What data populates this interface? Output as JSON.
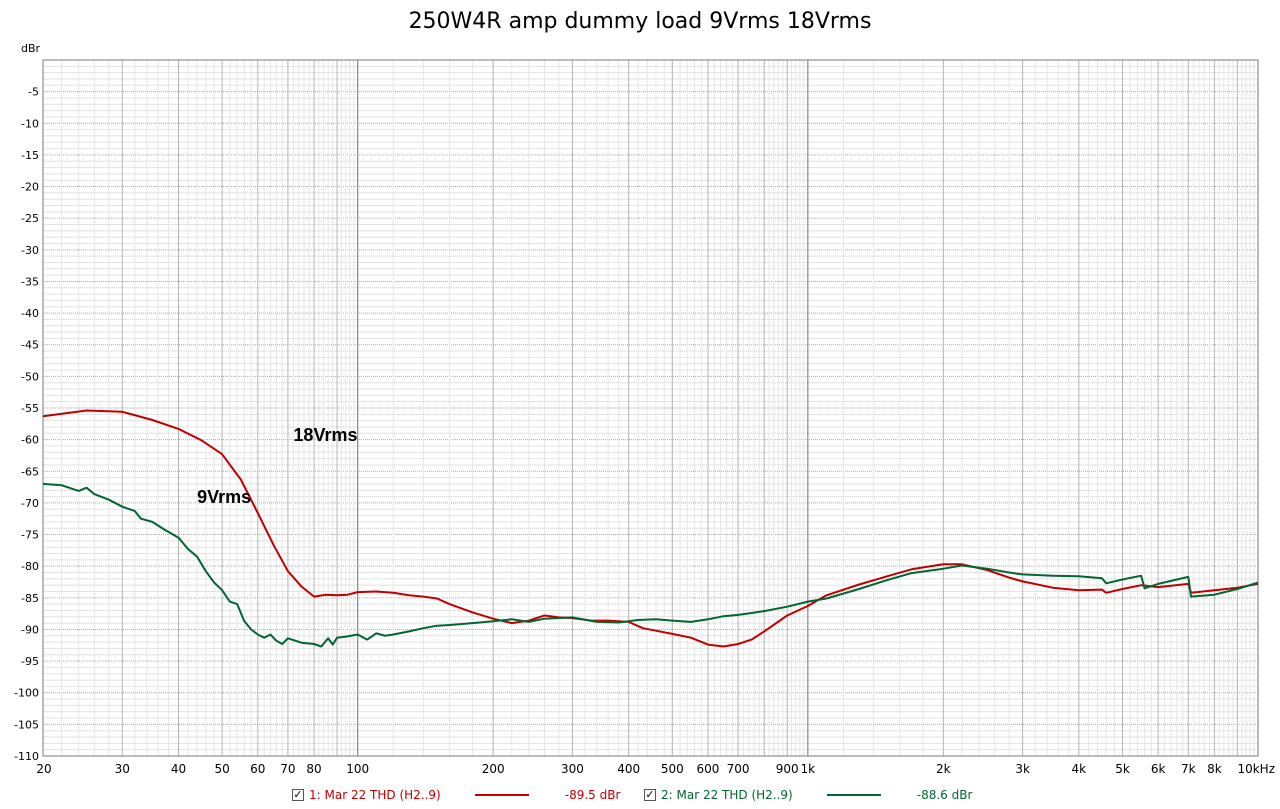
{
  "chart_data": {
    "type": "line",
    "title": "250W4R amp dummy load 9Vrms 18Vrms",
    "y_unit": "dBr",
    "x_scale": "log",
    "xlim": [
      20,
      10000
    ],
    "ylim": [
      -110,
      0
    ],
    "y_ticks": [
      "-5",
      "-10",
      "-15",
      "-20",
      "-25",
      "-30",
      "-35",
      "-40",
      "-45",
      "-50",
      "-55",
      "-60",
      "-65",
      "-70",
      "-75",
      "-80",
      "-85",
      "-90",
      "-95",
      "-100",
      "-105",
      "-110"
    ],
    "x_ticks": [
      {
        "v": 20,
        "label": "20"
      },
      {
        "v": 30,
        "label": "30"
      },
      {
        "v": 40,
        "label": "40"
      },
      {
        "v": 50,
        "label": "50"
      },
      {
        "v": 60,
        "label": "60"
      },
      {
        "v": 70,
        "label": "70"
      },
      {
        "v": 80,
        "label": "80"
      },
      {
        "v": 100,
        "label": "100"
      },
      {
        "v": 200,
        "label": "200"
      },
      {
        "v": 300,
        "label": "300"
      },
      {
        "v": 400,
        "label": "400"
      },
      {
        "v": 500,
        "label": "500"
      },
      {
        "v": 600,
        "label": "600"
      },
      {
        "v": 700,
        "label": "700"
      },
      {
        "v": 900,
        "label": "900"
      },
      {
        "v": 1000,
        "label": "1k"
      },
      {
        "v": 2000,
        "label": "2k"
      },
      {
        "v": 3000,
        "label": "3k"
      },
      {
        "v": 4000,
        "label": "4k"
      },
      {
        "v": 5000,
        "label": "5k"
      },
      {
        "v": 6000,
        "label": "6k"
      },
      {
        "v": 7000,
        "label": "7k"
      },
      {
        "v": 8000,
        "label": "8k"
      },
      {
        "v": 10000,
        "label": "10kHz"
      }
    ],
    "grid": true,
    "legend_position": "bottom",
    "series": [
      {
        "name": "1: Mar 22 THD (H2..9)",
        "readout": "-89.5 dBr",
        "color": "#c00000",
        "points": [
          [
            20,
            -56.3
          ],
          [
            25,
            -55.4
          ],
          [
            30,
            -55.6
          ],
          [
            35,
            -56.9
          ],
          [
            40,
            -58.3
          ],
          [
            45,
            -60.1
          ],
          [
            50,
            -62.3
          ],
          [
            55,
            -66.3
          ],
          [
            60,
            -71.6
          ],
          [
            65,
            -76.6
          ],
          [
            70,
            -80.8
          ],
          [
            75,
            -83.2
          ],
          [
            80,
            -84.8
          ],
          [
            85,
            -84.5
          ],
          [
            90,
            -84.6
          ],
          [
            95,
            -84.5
          ],
          [
            100,
            -84.1
          ],
          [
            110,
            -84.0
          ],
          [
            120,
            -84.2
          ],
          [
            130,
            -84.6
          ],
          [
            140,
            -84.8
          ],
          [
            150,
            -85.1
          ],
          [
            160,
            -86.0
          ],
          [
            180,
            -87.3
          ],
          [
            200,
            -88.3
          ],
          [
            220,
            -89.0
          ],
          [
            240,
            -88.6
          ],
          [
            260,
            -87.8
          ],
          [
            280,
            -88.1
          ],
          [
            300,
            -88.2
          ],
          [
            330,
            -88.6
          ],
          [
            360,
            -88.6
          ],
          [
            400,
            -88.8
          ],
          [
            430,
            -89.8
          ],
          [
            460,
            -90.2
          ],
          [
            500,
            -90.7
          ],
          [
            550,
            -91.3
          ],
          [
            600,
            -92.4
          ],
          [
            650,
            -92.7
          ],
          [
            700,
            -92.3
          ],
          [
            750,
            -91.6
          ],
          [
            800,
            -90.3
          ],
          [
            900,
            -87.8
          ],
          [
            1000,
            -86.3
          ],
          [
            1100,
            -84.6
          ],
          [
            1300,
            -82.9
          ],
          [
            1500,
            -81.6
          ],
          [
            1700,
            -80.5
          ],
          [
            2000,
            -79.7
          ],
          [
            2200,
            -79.7
          ],
          [
            2500,
            -80.6
          ],
          [
            2800,
            -81.8
          ],
          [
            3000,
            -82.4
          ],
          [
            3500,
            -83.4
          ],
          [
            4000,
            -83.8
          ],
          [
            4500,
            -83.7
          ],
          [
            4600,
            -84.2
          ],
          [
            5000,
            -83.6
          ],
          [
            5500,
            -83.0
          ],
          [
            6000,
            -83.3
          ],
          [
            7000,
            -82.8
          ],
          [
            7100,
            -84.2
          ],
          [
            8000,
            -83.8
          ],
          [
            9000,
            -83.4
          ],
          [
            10000,
            -82.8
          ]
        ]
      },
      {
        "name": "2: Mar 22 THD (H2..9)",
        "readout": "-88.6 dBr",
        "color": "#006633",
        "points": [
          [
            20,
            -67.0
          ],
          [
            22,
            -67.2
          ],
          [
            24,
            -68.1
          ],
          [
            25,
            -67.6
          ],
          [
            26,
            -68.6
          ],
          [
            28,
            -69.5
          ],
          [
            30,
            -70.6
          ],
          [
            32,
            -71.3
          ],
          [
            33,
            -72.5
          ],
          [
            35,
            -73.0
          ],
          [
            37,
            -74.1
          ],
          [
            40,
            -75.5
          ],
          [
            42,
            -77.3
          ],
          [
            44,
            -78.5
          ],
          [
            46,
            -80.8
          ],
          [
            48,
            -82.6
          ],
          [
            50,
            -83.8
          ],
          [
            52,
            -85.6
          ],
          [
            54,
            -86.0
          ],
          [
            56,
            -88.7
          ],
          [
            58,
            -90.0
          ],
          [
            60,
            -90.8
          ],
          [
            62,
            -91.3
          ],
          [
            64,
            -90.8
          ],
          [
            66,
            -91.8
          ],
          [
            68,
            -92.3
          ],
          [
            70,
            -91.4
          ],
          [
            75,
            -92.1
          ],
          [
            80,
            -92.3
          ],
          [
            83,
            -92.7
          ],
          [
            86,
            -91.4
          ],
          [
            88,
            -92.4
          ],
          [
            90,
            -91.3
          ],
          [
            95,
            -91.1
          ],
          [
            100,
            -90.8
          ],
          [
            105,
            -91.6
          ],
          [
            110,
            -90.6
          ],
          [
            115,
            -91.0
          ],
          [
            120,
            -90.8
          ],
          [
            130,
            -90.3
          ],
          [
            140,
            -89.8
          ],
          [
            150,
            -89.4
          ],
          [
            160,
            -89.3
          ],
          [
            180,
            -89.0
          ],
          [
            200,
            -88.7
          ],
          [
            220,
            -88.4
          ],
          [
            240,
            -88.8
          ],
          [
            260,
            -88.3
          ],
          [
            300,
            -88.1
          ],
          [
            340,
            -88.8
          ],
          [
            380,
            -88.9
          ],
          [
            420,
            -88.5
          ],
          [
            460,
            -88.4
          ],
          [
            500,
            -88.6
          ],
          [
            550,
            -88.8
          ],
          [
            600,
            -88.4
          ],
          [
            650,
            -87.9
          ],
          [
            700,
            -87.7
          ],
          [
            750,
            -87.4
          ],
          [
            800,
            -87.1
          ],
          [
            900,
            -86.4
          ],
          [
            1000,
            -85.6
          ],
          [
            1100,
            -85.1
          ],
          [
            1300,
            -83.6
          ],
          [
            1500,
            -82.2
          ],
          [
            1700,
            -81.1
          ],
          [
            2000,
            -80.4
          ],
          [
            2200,
            -79.9
          ],
          [
            2500,
            -80.4
          ],
          [
            2800,
            -81.0
          ],
          [
            3000,
            -81.3
          ],
          [
            3500,
            -81.5
          ],
          [
            4000,
            -81.6
          ],
          [
            4500,
            -81.9
          ],
          [
            4600,
            -82.7
          ],
          [
            5000,
            -82.1
          ],
          [
            5500,
            -81.5
          ],
          [
            5600,
            -83.5
          ],
          [
            6000,
            -82.8
          ],
          [
            7000,
            -81.7
          ],
          [
            7100,
            -84.8
          ],
          [
            8000,
            -84.5
          ],
          [
            9000,
            -83.6
          ],
          [
            10000,
            -82.6
          ]
        ]
      }
    ],
    "annotations": [
      {
        "text": "18Vrms",
        "x": 72,
        "y": -60.2
      },
      {
        "text": "9Vrms",
        "x": 44,
        "y": -70.0
      }
    ]
  }
}
